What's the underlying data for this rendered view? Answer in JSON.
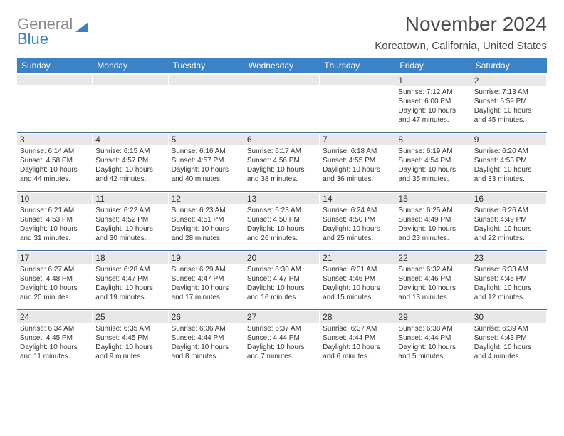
{
  "logo": {
    "top": "General",
    "bottom": "Blue"
  },
  "title": "November 2024",
  "location": "Koreatown, California, United States",
  "colors": {
    "header_bg": "#3b82c7",
    "header_text": "#ffffff",
    "daynum_bg": "#e8e8e8",
    "week_border": "#3b6fa0",
    "body_text": "#333333",
    "logo_gray": "#888888",
    "logo_blue": "#3b7fc4",
    "page_bg": "#ffffff"
  },
  "day_names": [
    "Sunday",
    "Monday",
    "Tuesday",
    "Wednesday",
    "Thursday",
    "Friday",
    "Saturday"
  ],
  "weeks": [
    [
      {
        "n": "",
        "sr": "",
        "ss": "",
        "dl": ""
      },
      {
        "n": "",
        "sr": "",
        "ss": "",
        "dl": ""
      },
      {
        "n": "",
        "sr": "",
        "ss": "",
        "dl": ""
      },
      {
        "n": "",
        "sr": "",
        "ss": "",
        "dl": ""
      },
      {
        "n": "",
        "sr": "",
        "ss": "",
        "dl": ""
      },
      {
        "n": "1",
        "sr": "Sunrise: 7:12 AM",
        "ss": "Sunset: 6:00 PM",
        "dl": "Daylight: 10 hours and 47 minutes."
      },
      {
        "n": "2",
        "sr": "Sunrise: 7:13 AM",
        "ss": "Sunset: 5:59 PM",
        "dl": "Daylight: 10 hours and 45 minutes."
      }
    ],
    [
      {
        "n": "3",
        "sr": "Sunrise: 6:14 AM",
        "ss": "Sunset: 4:58 PM",
        "dl": "Daylight: 10 hours and 44 minutes."
      },
      {
        "n": "4",
        "sr": "Sunrise: 6:15 AM",
        "ss": "Sunset: 4:57 PM",
        "dl": "Daylight: 10 hours and 42 minutes."
      },
      {
        "n": "5",
        "sr": "Sunrise: 6:16 AM",
        "ss": "Sunset: 4:57 PM",
        "dl": "Daylight: 10 hours and 40 minutes."
      },
      {
        "n": "6",
        "sr": "Sunrise: 6:17 AM",
        "ss": "Sunset: 4:56 PM",
        "dl": "Daylight: 10 hours and 38 minutes."
      },
      {
        "n": "7",
        "sr": "Sunrise: 6:18 AM",
        "ss": "Sunset: 4:55 PM",
        "dl": "Daylight: 10 hours and 36 minutes."
      },
      {
        "n": "8",
        "sr": "Sunrise: 6:19 AM",
        "ss": "Sunset: 4:54 PM",
        "dl": "Daylight: 10 hours and 35 minutes."
      },
      {
        "n": "9",
        "sr": "Sunrise: 6:20 AM",
        "ss": "Sunset: 4:53 PM",
        "dl": "Daylight: 10 hours and 33 minutes."
      }
    ],
    [
      {
        "n": "10",
        "sr": "Sunrise: 6:21 AM",
        "ss": "Sunset: 4:53 PM",
        "dl": "Daylight: 10 hours and 31 minutes."
      },
      {
        "n": "11",
        "sr": "Sunrise: 6:22 AM",
        "ss": "Sunset: 4:52 PM",
        "dl": "Daylight: 10 hours and 30 minutes."
      },
      {
        "n": "12",
        "sr": "Sunrise: 6:23 AM",
        "ss": "Sunset: 4:51 PM",
        "dl": "Daylight: 10 hours and 28 minutes."
      },
      {
        "n": "13",
        "sr": "Sunrise: 6:23 AM",
        "ss": "Sunset: 4:50 PM",
        "dl": "Daylight: 10 hours and 26 minutes."
      },
      {
        "n": "14",
        "sr": "Sunrise: 6:24 AM",
        "ss": "Sunset: 4:50 PM",
        "dl": "Daylight: 10 hours and 25 minutes."
      },
      {
        "n": "15",
        "sr": "Sunrise: 6:25 AM",
        "ss": "Sunset: 4:49 PM",
        "dl": "Daylight: 10 hours and 23 minutes."
      },
      {
        "n": "16",
        "sr": "Sunrise: 6:26 AM",
        "ss": "Sunset: 4:49 PM",
        "dl": "Daylight: 10 hours and 22 minutes."
      }
    ],
    [
      {
        "n": "17",
        "sr": "Sunrise: 6:27 AM",
        "ss": "Sunset: 4:48 PM",
        "dl": "Daylight: 10 hours and 20 minutes."
      },
      {
        "n": "18",
        "sr": "Sunrise: 6:28 AM",
        "ss": "Sunset: 4:47 PM",
        "dl": "Daylight: 10 hours and 19 minutes."
      },
      {
        "n": "19",
        "sr": "Sunrise: 6:29 AM",
        "ss": "Sunset: 4:47 PM",
        "dl": "Daylight: 10 hours and 17 minutes."
      },
      {
        "n": "20",
        "sr": "Sunrise: 6:30 AM",
        "ss": "Sunset: 4:47 PM",
        "dl": "Daylight: 10 hours and 16 minutes."
      },
      {
        "n": "21",
        "sr": "Sunrise: 6:31 AM",
        "ss": "Sunset: 4:46 PM",
        "dl": "Daylight: 10 hours and 15 minutes."
      },
      {
        "n": "22",
        "sr": "Sunrise: 6:32 AM",
        "ss": "Sunset: 4:46 PM",
        "dl": "Daylight: 10 hours and 13 minutes."
      },
      {
        "n": "23",
        "sr": "Sunrise: 6:33 AM",
        "ss": "Sunset: 4:45 PM",
        "dl": "Daylight: 10 hours and 12 minutes."
      }
    ],
    [
      {
        "n": "24",
        "sr": "Sunrise: 6:34 AM",
        "ss": "Sunset: 4:45 PM",
        "dl": "Daylight: 10 hours and 11 minutes."
      },
      {
        "n": "25",
        "sr": "Sunrise: 6:35 AM",
        "ss": "Sunset: 4:45 PM",
        "dl": "Daylight: 10 hours and 9 minutes."
      },
      {
        "n": "26",
        "sr": "Sunrise: 6:36 AM",
        "ss": "Sunset: 4:44 PM",
        "dl": "Daylight: 10 hours and 8 minutes."
      },
      {
        "n": "27",
        "sr": "Sunrise: 6:37 AM",
        "ss": "Sunset: 4:44 PM",
        "dl": "Daylight: 10 hours and 7 minutes."
      },
      {
        "n": "28",
        "sr": "Sunrise: 6:37 AM",
        "ss": "Sunset: 4:44 PM",
        "dl": "Daylight: 10 hours and 6 minutes."
      },
      {
        "n": "29",
        "sr": "Sunrise: 6:38 AM",
        "ss": "Sunset: 4:44 PM",
        "dl": "Daylight: 10 hours and 5 minutes."
      },
      {
        "n": "30",
        "sr": "Sunrise: 6:39 AM",
        "ss": "Sunset: 4:43 PM",
        "dl": "Daylight: 10 hours and 4 minutes."
      }
    ]
  ]
}
